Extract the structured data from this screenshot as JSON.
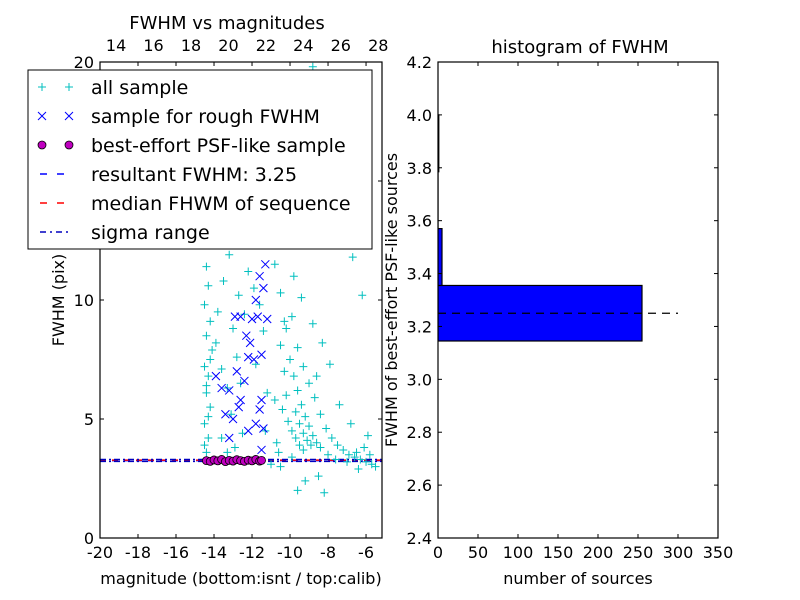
{
  "chart_data": [
    {
      "type": "scatter",
      "title": "FWHM vs magnitudes",
      "xlabel": "magnitude (bottom:isnt / top:calib)",
      "ylabel": "FWHM (pix)",
      "xlim": [
        -20,
        -5.16
      ],
      "ylim": [
        0,
        20
      ],
      "xticks": [
        "-20",
        "-18",
        "-16",
        "-14",
        "-12",
        "-10",
        "-8",
        "-6"
      ],
      "xtick_values": [
        -20,
        -18,
        -16,
        -14,
        -12,
        -10,
        -8,
        -6
      ],
      "yticks": [
        "0",
        "5",
        "10",
        "15",
        "20"
      ],
      "ytick_values": [
        0,
        5,
        10,
        15,
        20
      ],
      "top_xlim": [
        13.14,
        28.2
      ],
      "top_xticks": [
        "14",
        "16",
        "18",
        "20",
        "22",
        "24",
        "26",
        "28"
      ],
      "top_xtick_values": [
        14,
        16,
        18,
        20,
        22,
        24,
        26,
        28
      ],
      "legend": {
        "placement": "top-left",
        "entries": [
          {
            "label": "all sample",
            "color": "#00BFBF",
            "marker": "+"
          },
          {
            "label": "sample for rough FWHM",
            "color": "#0000FF",
            "marker": "x"
          },
          {
            "label": "best-effort PSF-like sample",
            "color": "#BF00BF",
            "marker": "o"
          },
          {
            "label": "resultant FWHM: 3.25",
            "color": "#0000FF",
            "marker": "--"
          },
          {
            "label": "median FHWM of sequence",
            "color": "#FF0000",
            "marker": "--"
          },
          {
            "label": "sigma range",
            "color": "#0000BF",
            "marker": "-."
          }
        ]
      },
      "series": [
        {
          "name": "all sample",
          "color": "#00BFBF",
          "points": [
            [
              -14.4,
              3.6
            ],
            [
              -14.3,
              4.2
            ],
            [
              -14.5,
              4.8
            ],
            [
              -14.2,
              5.5
            ],
            [
              -14.4,
              6.1
            ],
            [
              -14.3,
              6.8
            ],
            [
              -14.5,
              7.2
            ],
            [
              -14.1,
              7.9
            ],
            [
              -14.4,
              8.5
            ],
            [
              -14.2,
              9.1
            ],
            [
              -14.5,
              9.8
            ],
            [
              -14.3,
              10.6
            ],
            [
              -14.4,
              11.4
            ],
            [
              -14.2,
              12.3
            ],
            [
              -14.5,
              3.9
            ],
            [
              -14.3,
              5.1
            ],
            [
              -14.4,
              6.4
            ],
            [
              -14.2,
              7.5
            ],
            [
              -13.8,
              9.5
            ],
            [
              -13.5,
              10.8
            ],
            [
              -13.2,
              11.9
            ],
            [
              -13.9,
              8.2
            ],
            [
              -13.6,
              7.1
            ],
            [
              -13.3,
              6.3
            ],
            [
              -13,
              8.8
            ],
            [
              -12.7,
              10.2
            ],
            [
              -12.4,
              9.4
            ],
            [
              -12.8,
              7.6
            ],
            [
              -13.1,
              5.2
            ],
            [
              -12.6,
              6.5
            ],
            [
              -12.2,
              11.2
            ],
            [
              -11.9,
              10.5
            ],
            [
              -11.6,
              9.8
            ],
            [
              -11.4,
              8.7
            ],
            [
              -11.8,
              7.3
            ],
            [
              -11.2,
              6.1
            ],
            [
              -11,
              12.8
            ],
            [
              -10.8,
              11.5
            ],
            [
              -10.5,
              10.3
            ],
            [
              -10.3,
              9.1
            ],
            [
              -13.4,
              13.5
            ],
            [
              -12.9,
              14.2
            ],
            [
              -12.1,
              13.1
            ],
            [
              -11.5,
              14.8
            ],
            [
              -10.9,
              15.6
            ],
            [
              -10.2,
              16.4
            ],
            [
              -9.6,
              17.2
            ],
            [
              -9.1,
              18.5
            ],
            [
              -8.8,
              19.8
            ],
            [
              -10.6,
              13.9
            ],
            [
              -9.9,
              14.6
            ],
            [
              -9.3,
              15.3
            ],
            [
              -8.5,
              14.1
            ],
            [
              -7.9,
              13.2
            ],
            [
              -7.2,
              12.5
            ],
            [
              -6.7,
              11.8
            ],
            [
              -6.2,
              10.2
            ],
            [
              -8.2,
              16.1
            ],
            [
              -7.5,
              15.0
            ],
            [
              -6.9,
              13.9
            ],
            [
              -13.7,
              17.5
            ],
            [
              -12.3,
              18.9
            ],
            [
              -11.1,
              19.5
            ],
            [
              -14,
              15.8
            ],
            [
              -13,
              16.8
            ],
            [
              -10,
              7.5
            ],
            [
              -9.8,
              6.8
            ],
            [
              -9.6,
              6.2
            ],
            [
              -9.4,
              5.6
            ],
            [
              -9.2,
              5.1
            ],
            [
              -9,
              4.7
            ],
            [
              -8.8,
              4.3
            ],
            [
              -8.6,
              4.0
            ],
            [
              -8.4,
              3.8
            ],
            [
              -9.7,
              5.3
            ],
            [
              -9.5,
              4.8
            ],
            [
              -9.3,
              4.4
            ],
            [
              -9.1,
              4.1
            ],
            [
              -8.9,
              3.9
            ],
            [
              -10.2,
              6.0
            ],
            [
              -10.4,
              5.4
            ],
            [
              -10.1,
              4.9
            ],
            [
              -9.9,
              4.5
            ],
            [
              -9.7,
              4.2
            ],
            [
              -9.5,
              3.9
            ],
            [
              -9.3,
              3.7
            ],
            [
              -10.3,
              7.0
            ],
            [
              -10.5,
              8.1
            ],
            [
              -10.2,
              8.8
            ],
            [
              -9.9,
              9.3
            ],
            [
              -9.6,
              8.0
            ],
            [
              -9.3,
              7.2
            ],
            [
              -9.0,
              6.5
            ],
            [
              -8.7,
              5.9
            ],
            [
              -8.4,
              5.2
            ],
            [
              -8.1,
              4.6
            ],
            [
              -7.8,
              4.2
            ],
            [
              -7.5,
              3.9
            ],
            [
              -7.2,
              3.7
            ],
            [
              -6.9,
              3.5
            ],
            [
              -6.6,
              3.4
            ],
            [
              -6.3,
              3.3
            ],
            [
              -6.0,
              3.2
            ],
            [
              -5.7,
              3.1
            ],
            [
              -5.5,
              3.0
            ],
            [
              -8.0,
              3.5
            ],
            [
              -7.6,
              3.3
            ],
            [
              -7.0,
              3.2
            ],
            [
              -6.5,
              3.6
            ],
            [
              -6.1,
              3.8
            ],
            [
              -5.8,
              3.5
            ],
            [
              -8.5,
              2.6
            ],
            [
              -9.2,
              2.4
            ],
            [
              -9.6,
              2.0
            ],
            [
              -8.2,
              1.9
            ],
            [
              -10.5,
              3.0
            ],
            [
              -11,
              3.1
            ],
            [
              -10.8,
              5.8
            ],
            [
              -11.3,
              4.5
            ],
            [
              -10.7,
              4.0
            ],
            [
              -7.4,
              5.6
            ],
            [
              -6.8,
              4.8
            ],
            [
              -7.9,
              7.3
            ],
            [
              -8.3,
              8.2
            ],
            [
              -8.8,
              9.0
            ],
            [
              -9.4,
              10.1
            ],
            [
              -9.8,
              11.0
            ],
            [
              -8.6,
              6.8
            ],
            [
              -9.9,
              3.4
            ],
            [
              -10.6,
              3.6
            ],
            [
              -6.4,
              2.9
            ],
            [
              -5.9,
              4.3
            ],
            [
              -13.6,
              4.2
            ],
            [
              -12.9,
              3.8
            ],
            [
              -12.5,
              4.4
            ],
            [
              -13.3,
              3.6
            ]
          ]
        },
        {
          "name": "sample for rough FWHM",
          "color": "#0000FF",
          "points": [
            [
              -13.9,
              6.8
            ],
            [
              -13.6,
              6.3
            ],
            [
              -13.4,
              5.2
            ],
            [
              -13.2,
              6.2
            ],
            [
              -13,
              5
            ],
            [
              -12.8,
              7
            ],
            [
              -12.7,
              5.5
            ],
            [
              -12.6,
              5.8
            ],
            [
              -12.4,
              6.6
            ],
            [
              -12.3,
              8.5
            ],
            [
              -12.2,
              7.6
            ],
            [
              -12.1,
              8.2
            ],
            [
              -12,
              9.2
            ],
            [
              -11.9,
              7.5
            ],
            [
              -11.8,
              10
            ],
            [
              -11.7,
              9.3
            ],
            [
              -11.6,
              11
            ],
            [
              -11.5,
              7.7
            ],
            [
              -11.4,
              10.5
            ],
            [
              -11.3,
              11.5
            ],
            [
              -11.8,
              4.8
            ],
            [
              -11.6,
              5.4
            ],
            [
              -11.5,
              5.8
            ],
            [
              -11.4,
              4.6
            ],
            [
              -12.9,
              9.3
            ],
            [
              -12.6,
              9.3
            ],
            [
              -11.9,
              12.5
            ],
            [
              -12.5,
              13
            ],
            [
              -11.7,
              13.8
            ],
            [
              -13.2,
              4.2
            ],
            [
              -11.2,
              9.2
            ],
            [
              -11.5,
              3.7
            ],
            [
              -12.2,
              4.5
            ]
          ]
        },
        {
          "name": "best-effort PSF-like sample",
          "color": "#BF00BF",
          "points": [
            [
              -14.4,
              3.25
            ],
            [
              -14.2,
              3.22
            ],
            [
              -14.0,
              3.28
            ],
            [
              -13.8,
              3.24
            ],
            [
              -13.6,
              3.3
            ],
            [
              -13.4,
              3.21
            ],
            [
              -13.2,
              3.26
            ],
            [
              -13.0,
              3.23
            ],
            [
              -12.8,
              3.29
            ],
            [
              -12.6,
              3.25
            ],
            [
              -12.4,
              3.22
            ],
            [
              -12.2,
              3.27
            ],
            [
              -12.0,
              3.24
            ],
            [
              -11.8,
              3.3
            ],
            [
              -11.6,
              3.23
            ],
            [
              -11.5,
              3.26
            ]
          ]
        }
      ],
      "hlines": [
        {
          "name": "resultant FWHM",
          "y": 3.25,
          "color": "#0000FF",
          "style": "dashed"
        },
        {
          "name": "median FHWM of sequence",
          "y": 3.27,
          "color": "#FF0000",
          "style": "dashed"
        },
        {
          "name": "sigma range low",
          "y": 3.22,
          "color": "#0000BF",
          "style": "dashdot"
        },
        {
          "name": "sigma range high",
          "y": 3.3,
          "color": "#0000BF",
          "style": "dashdot"
        }
      ]
    },
    {
      "type": "bar",
      "orientation": "horizontal",
      "title": "histogram of FWHM",
      "xlabel": "number of sources",
      "ylabel": "FWHM of best-effort PSF-like sources",
      "xlim": [
        0,
        350
      ],
      "ylim": [
        2.4,
        4.2
      ],
      "xticks": [
        "0",
        "50",
        "100",
        "150",
        "200",
        "250",
        "300",
        "350"
      ],
      "xtick_values": [
        0,
        50,
        100,
        150,
        200,
        250,
        300,
        350
      ],
      "yticks": [
        "2.4",
        "2.6",
        "2.8",
        "3.0",
        "3.2",
        "3.4",
        "3.6",
        "3.8",
        "4.0",
        "4.2"
      ],
      "ytick_values": [
        2.4,
        2.6,
        2.8,
        3.0,
        3.2,
        3.4,
        3.6,
        3.8,
        4.0,
        4.2
      ],
      "bin_edges": [
        3.145,
        3.355,
        3.57,
        3.785,
        4.0
      ],
      "counts": [
        255,
        5,
        0,
        1
      ],
      "bar_color": "#0000FF",
      "reference_line": {
        "y": 3.25,
        "x_range": [
          0,
          300
        ],
        "color": "#000000",
        "style": "dashed"
      }
    }
  ]
}
